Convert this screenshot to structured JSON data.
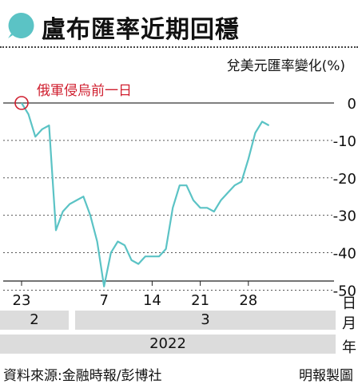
{
  "title": "盧布匯率近期回穩",
  "colors": {
    "accent": "#5bc3c5",
    "marker": "#d02030",
    "line": "#5bc3c5",
    "grid": "#555555"
  },
  "chart_data": {
    "type": "line",
    "unit_label": "兌美元匯率變化(%)",
    "annotation": "俄軍侵烏前一日",
    "y_ticks": [
      "0",
      "-10",
      "-20",
      "-30",
      "-40",
      "-50"
    ],
    "ylim": [
      -52,
      0
    ],
    "x_ticks": [
      "23",
      "7",
      "14",
      "21",
      "28"
    ],
    "x_unit": "日",
    "months": [
      "2",
      "3"
    ],
    "month_unit": "月",
    "year": "2022",
    "year_unit": "年",
    "x_start": "2022-02-23",
    "series": [
      {
        "x": [
          "2022-02-23",
          "2022-02-24",
          "2022-02-25",
          "2022-02-26",
          "2022-02-27",
          "2022-02-28",
          "2022-03-01",
          "2022-03-02",
          "2022-03-03",
          "2022-03-04",
          "2022-03-05",
          "2022-03-06",
          "2022-03-07",
          "2022-03-08",
          "2022-03-09",
          "2022-03-10",
          "2022-03-11",
          "2022-03-12",
          "2022-03-13",
          "2022-03-14",
          "2022-03-15",
          "2022-03-16",
          "2022-03-17",
          "2022-03-18",
          "2022-03-19",
          "2022-03-20",
          "2022-03-21",
          "2022-03-22",
          "2022-03-23",
          "2022-03-24",
          "2022-03-25",
          "2022-03-26",
          "2022-03-27",
          "2022-03-28",
          "2022-03-29",
          "2022-03-30",
          "2022-03-31"
        ],
        "values": [
          0,
          -3,
          -9,
          -7,
          -6,
          -34,
          -29,
          -27,
          -26,
          -25,
          -30,
          -37,
          -49,
          -40,
          -37,
          -38,
          -42,
          -43,
          -41,
          -41,
          -41,
          -39,
          -28,
          -22,
          -22,
          -26,
          -28,
          -28,
          -29,
          -26,
          -24,
          -22,
          -21,
          -15,
          -8,
          -5,
          -6
        ]
      }
    ]
  },
  "footer": {
    "source": "資料來源:金融時報/彭博社",
    "credit": "明報製圖"
  }
}
